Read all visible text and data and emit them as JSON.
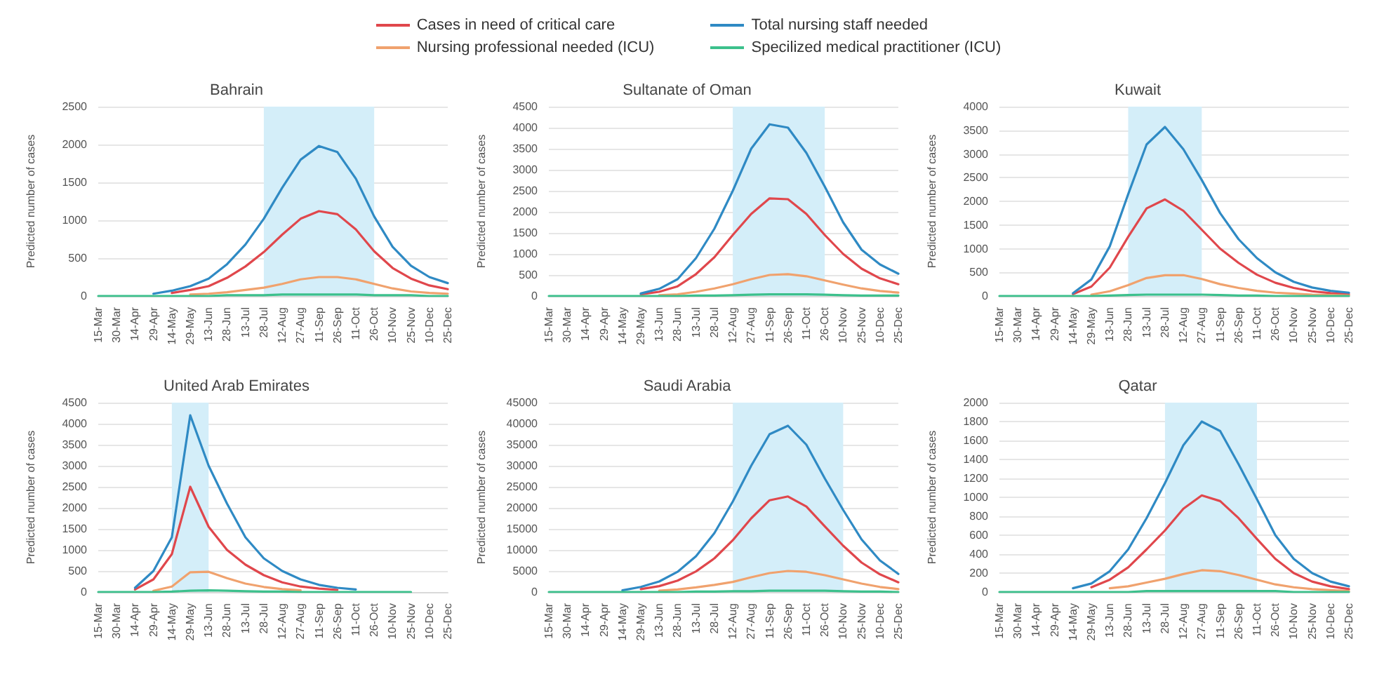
{
  "chart_data": [
    {
      "type": "line",
      "title": "Bahrain",
      "ylabel": "Predicted number of cases",
      "legend": "top",
      "grid": "y",
      "categories": [
        "15-Mar",
        "30-Mar",
        "14-Apr",
        "29-Apr",
        "14-May",
        "29-May",
        "13-Jun",
        "28-Jun",
        "13-Jul",
        "28-Jul",
        "12-Aug",
        "27-Aug",
        "11-Sep",
        "26-Sep",
        "11-Oct",
        "26-Oct",
        "10-Nov",
        "25-Nov",
        "10-Dec",
        "25-Dec"
      ],
      "ylim": [
        0,
        2500
      ],
      "yticks": [
        0,
        500,
        1000,
        1500,
        2000,
        2500
      ],
      "bands": [
        {
          "axis": "x",
          "from": "28-Jul",
          "to": "26-Oct",
          "color": "#d4eef9"
        }
      ],
      "series": [
        {
          "name": "Cases in need of critical care",
          "color": "#e0474c",
          "values": [
            null,
            null,
            null,
            null,
            40,
            80,
            130,
            240,
            390,
            580,
            810,
            1020,
            1120,
            1080,
            880,
            590,
            370,
            230,
            140,
            90
          ]
        },
        {
          "name": "Total nursing staff needed",
          "color": "#2f8ac4",
          "values": [
            null,
            null,
            null,
            30,
            70,
            130,
            230,
            420,
            680,
            1020,
            1430,
            1800,
            1980,
            1900,
            1550,
            1050,
            650,
            400,
            250,
            170
          ]
        },
        {
          "name": "Nursing professional needed (ICU)",
          "color": "#f0a26e",
          "values": [
            null,
            null,
            null,
            null,
            null,
            20,
            30,
            50,
            80,
            110,
            160,
            220,
            250,
            250,
            220,
            160,
            100,
            60,
            40,
            30
          ]
        },
        {
          "name": "Specilized medical practitioner (ICU)",
          "color": "#3cc08c",
          "values": [
            0,
            0,
            0,
            0,
            0,
            0,
            0,
            10,
            10,
            10,
            20,
            20,
            20,
            20,
            20,
            10,
            10,
            10,
            0,
            0
          ]
        }
      ]
    },
    {
      "type": "line",
      "title": "Sultanate of Oman",
      "ylabel": "Predicted number of cases",
      "grid": "y",
      "categories": [
        "15-Mar",
        "30-Mar",
        "14-Apr",
        "29-Apr",
        "14-May",
        "29-May",
        "13-Jun",
        "28-Jun",
        "13-Jul",
        "28-Jul",
        "12-Aug",
        "27-Aug",
        "11-Sep",
        "26-Sep",
        "11-Oct",
        "26-Oct",
        "10-Nov",
        "25-Nov",
        "10-Dec",
        "25-Dec"
      ],
      "ylim": [
        0,
        4500
      ],
      "yticks": [
        0,
        500,
        1000,
        1500,
        2000,
        2500,
        3000,
        3500,
        4000,
        4500
      ],
      "bands": [
        {
          "axis": "x",
          "from": "12-Aug",
          "to": "26-Oct",
          "color": "#d4eef9"
        }
      ],
      "series": [
        {
          "color": "#e0474c",
          "values": [
            null,
            null,
            null,
            null,
            null,
            40,
            100,
            230,
            520,
            920,
            1450,
            1950,
            2320,
            2300,
            1950,
            1450,
            1000,
            650,
            420,
            280
          ]
        },
        {
          "color": "#2f8ac4",
          "values": [
            null,
            null,
            null,
            null,
            null,
            60,
            170,
            400,
            900,
            1600,
            2500,
            3500,
            4080,
            4000,
            3400,
            2600,
            1750,
            1100,
            750,
            530
          ]
        },
        {
          "color": "#f0a26e",
          "values": [
            null,
            null,
            null,
            null,
            null,
            null,
            20,
            40,
            100,
            180,
            280,
            400,
            500,
            520,
            470,
            370,
            270,
            180,
            120,
            80
          ]
        },
        {
          "color": "#3cc08c",
          "values": [
            0,
            0,
            0,
            0,
            0,
            0,
            0,
            0,
            10,
            10,
            20,
            30,
            40,
            40,
            40,
            30,
            20,
            10,
            10,
            10
          ]
        }
      ]
    },
    {
      "type": "line",
      "title": "Kuwait",
      "ylabel": "Predicted number of cases",
      "grid": "y",
      "categories": [
        "15-Mar",
        "30-Mar",
        "14-Apr",
        "29-Apr",
        "14-May",
        "29-May",
        "13-Jun",
        "28-Jun",
        "13-Jul",
        "28-Jul",
        "12-Aug",
        "27-Aug",
        "11-Sep",
        "26-Sep",
        "11-Oct",
        "26-Oct",
        "10-Nov",
        "25-Nov",
        "10-Dec",
        "25-Dec"
      ],
      "ylim": [
        0,
        4000
      ],
      "yticks": [
        0,
        500,
        1000,
        1500,
        2000,
        2500,
        3000,
        3500,
        4000
      ],
      "bands": [
        {
          "axis": "x",
          "from": "28-Jun",
          "to": "27-Aug",
          "color": "#d4eef9"
        }
      ],
      "series": [
        {
          "color": "#e0474c",
          "values": [
            null,
            null,
            null,
            null,
            40,
            200,
            600,
            1250,
            1850,
            2040,
            1800,
            1400,
            1000,
            700,
            450,
            280,
            170,
            100,
            60,
            40
          ]
        },
        {
          "color": "#2f8ac4",
          "values": [
            null,
            null,
            null,
            null,
            60,
            350,
            1050,
            2150,
            3200,
            3570,
            3100,
            2450,
            1750,
            1200,
            800,
            500,
            300,
            180,
            110,
            70
          ]
        },
        {
          "color": "#f0a26e",
          "values": [
            null,
            null,
            null,
            null,
            null,
            30,
            100,
            230,
            380,
            440,
            440,
            360,
            250,
            170,
            110,
            70,
            50,
            30,
            20,
            10
          ]
        },
        {
          "color": "#3cc08c",
          "values": [
            0,
            0,
            0,
            0,
            0,
            0,
            10,
            20,
            30,
            30,
            30,
            30,
            20,
            10,
            10,
            0,
            0,
            0,
            0,
            0
          ]
        }
      ]
    },
    {
      "type": "line",
      "title": "United Arab Emirates",
      "ylabel": "Predicted number of cases",
      "grid": "y",
      "categories": [
        "15-Mar",
        "30-Mar",
        "14-Apr",
        "29-Apr",
        "14-May",
        "29-May",
        "13-Jun",
        "28-Jun",
        "13-Jul",
        "28-Jul",
        "12-Aug",
        "27-Aug",
        "11-Sep",
        "26-Sep",
        "11-Oct",
        "26-Oct",
        "10-Nov",
        "25-Nov",
        "10-Dec",
        "25-Dec"
      ],
      "ylim": [
        0,
        4500
      ],
      "yticks": [
        0,
        500,
        1000,
        1500,
        2000,
        2500,
        3000,
        3500,
        4000,
        4500
      ],
      "bands": [
        {
          "axis": "x",
          "from": "14-May",
          "to": "13-Jun",
          "color": "#d4eef9"
        }
      ],
      "series": [
        {
          "color": "#e0474c",
          "values": [
            null,
            null,
            60,
            300,
            900,
            2500,
            1550,
            1000,
            650,
            400,
            230,
            130,
            80,
            50,
            null,
            null,
            null,
            null,
            null,
            null
          ]
        },
        {
          "color": "#2f8ac4",
          "values": [
            null,
            null,
            100,
            500,
            1300,
            4200,
            3000,
            2100,
            1300,
            800,
            500,
            300,
            170,
            100,
            60,
            null,
            null,
            null,
            null,
            null
          ]
        },
        {
          "color": "#f0a26e",
          "values": [
            null,
            null,
            null,
            30,
            130,
            470,
            480,
            330,
            200,
            120,
            70,
            40,
            null,
            null,
            null,
            null,
            null,
            null,
            null,
            null
          ]
        },
        {
          "color": "#3cc08c",
          "values": [
            0,
            0,
            0,
            0,
            10,
            30,
            40,
            30,
            20,
            10,
            10,
            0,
            0,
            0,
            0,
            0,
            0,
            0,
            null,
            null
          ]
        }
      ]
    },
    {
      "type": "line",
      "title": "Saudi Arabia",
      "ylabel": "Predicted number of cases",
      "grid": "y",
      "categories": [
        "15-Mar",
        "30-Mar",
        "14-Apr",
        "29-Apr",
        "14-May",
        "29-May",
        "13-Jun",
        "28-Jun",
        "13-Jul",
        "28-Jul",
        "12-Aug",
        "27-Aug",
        "11-Sep",
        "26-Sep",
        "11-Oct",
        "26-Oct",
        "10-Nov",
        "25-Nov",
        "10-Dec",
        "25-Dec"
      ],
      "ylim": [
        0,
        45000
      ],
      "yticks": [
        0,
        5000,
        10000,
        15000,
        20000,
        25000,
        30000,
        35000,
        40000,
        45000
      ],
      "bands": [
        {
          "axis": "x",
          "from": "12-Aug",
          "to": "10-Nov",
          "color": "#d4eef9"
        }
      ],
      "series": [
        {
          "color": "#e0474c",
          "values": [
            null,
            null,
            null,
            null,
            null,
            700,
            1400,
            2700,
            4900,
            8000,
            12300,
            17500,
            21800,
            22700,
            20300,
            15600,
            11000,
            7000,
            4200,
            2300
          ]
        },
        {
          "color": "#2f8ac4",
          "values": [
            null,
            null,
            null,
            null,
            400,
            1200,
            2500,
            4800,
            8500,
            14000,
            21500,
            30000,
            37500,
            39500,
            35000,
            27000,
            19500,
            12500,
            7500,
            4300
          ]
        },
        {
          "color": "#f0a26e",
          "values": [
            null,
            null,
            null,
            null,
            null,
            null,
            300,
            600,
            1100,
            1700,
            2400,
            3500,
            4500,
            5000,
            4800,
            4000,
            3000,
            2000,
            1200,
            700
          ]
        },
        {
          "color": "#3cc08c",
          "values": [
            0,
            0,
            0,
            0,
            0,
            0,
            0,
            0,
            100,
            100,
            200,
            200,
            300,
            300,
            300,
            300,
            200,
            100,
            100,
            0
          ]
        }
      ]
    },
    {
      "type": "line",
      "title": "Qatar",
      "ylabel": "Predicted number of cases",
      "grid": "y",
      "categories": [
        "15-Mar",
        "30-Mar",
        "14-Apr",
        "29-Apr",
        "14-May",
        "29-May",
        "13-Jun",
        "28-Jun",
        "13-Jul",
        "28-Jul",
        "12-Aug",
        "27-Aug",
        "11-Sep",
        "26-Sep",
        "11-Oct",
        "26-Oct",
        "10-Nov",
        "25-Nov",
        "10-Dec",
        "25-Dec"
      ],
      "ylim": [
        0,
        2000
      ],
      "yticks": [
        0,
        200,
        400,
        600,
        800,
        1000,
        1200,
        1400,
        1600,
        1800,
        2000
      ],
      "bands": [
        {
          "axis": "x",
          "from": "28-Jul",
          "to": "11-Oct",
          "color": "#d4eef9"
        }
      ],
      "series": [
        {
          "color": "#e0474c",
          "values": [
            null,
            null,
            null,
            null,
            null,
            50,
            130,
            260,
            450,
            650,
            880,
            1020,
            960,
            780,
            560,
            350,
            200,
            110,
            60,
            30
          ]
        },
        {
          "color": "#2f8ac4",
          "values": [
            null,
            null,
            null,
            null,
            40,
            90,
            220,
            450,
            780,
            1150,
            1550,
            1800,
            1700,
            1350,
            980,
            600,
            350,
            200,
            110,
            60
          ]
        },
        {
          "color": "#f0a26e",
          "values": [
            null,
            null,
            null,
            null,
            null,
            null,
            40,
            60,
            100,
            140,
            190,
            230,
            220,
            180,
            130,
            80,
            50,
            30,
            20,
            10
          ]
        },
        {
          "color": "#3cc08c",
          "values": [
            0,
            0,
            0,
            0,
            0,
            0,
            0,
            0,
            10,
            10,
            10,
            10,
            10,
            10,
            10,
            10,
            0,
            0,
            0,
            0
          ]
        }
      ]
    }
  ]
}
